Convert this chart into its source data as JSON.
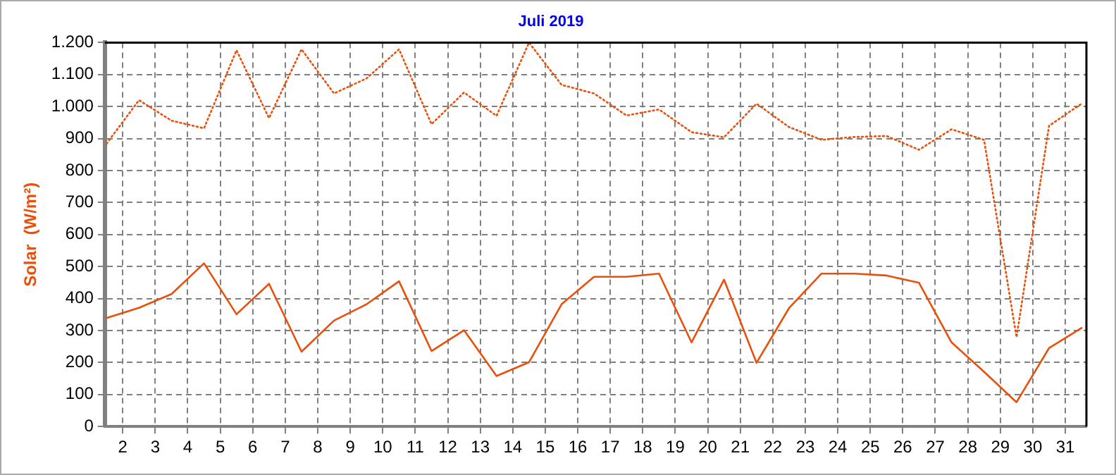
{
  "chart_data": {
    "type": "line",
    "title": "Juli 2019",
    "ylabel": "Solar  (W/m²)",
    "x": [
      1.5,
      2.5,
      3.5,
      4.5,
      5.5,
      6.5,
      7.5,
      8.5,
      9.5,
      10.5,
      11.5,
      12.5,
      13.5,
      14.5,
      15.5,
      16.5,
      17.5,
      18.5,
      19.5,
      20.5,
      21.5,
      22.5,
      23.5,
      24.5,
      25.5,
      26.5,
      27.5,
      28.5,
      29.5,
      30.5,
      31.5
    ],
    "series": [
      {
        "color": "#e8500c",
        "line_style": "dotted",
        "values": [
          884,
          1020,
          956,
          932,
          1176,
          964,
          1179,
          1041,
          1088,
          1179,
          945,
          1044,
          971,
          1200,
          1068,
          1041,
          972,
          991,
          920,
          904,
          1009,
          936,
          896,
          905,
          908,
          865,
          929,
          896,
          279,
          940,
          1009
        ]
      },
      {
        "color": "#e8500c",
        "line_style": "solid",
        "values": [
          339,
          371,
          414,
          510,
          351,
          446,
          234,
          331,
          382,
          454,
          236,
          301,
          158,
          201,
          382,
          468,
          468,
          478,
          263,
          459,
          199,
          370,
          478,
          478,
          472,
          449,
          263,
          171,
          76,
          245,
          308
        ]
      }
    ],
    "xlim": [
      1.45,
      31.65
    ],
    "xticks": [
      2,
      3,
      4,
      5,
      6,
      7,
      8,
      9,
      10,
      11,
      12,
      13,
      14,
      15,
      16,
      17,
      18,
      19,
      20,
      21,
      22,
      23,
      24,
      25,
      26,
      27,
      28,
      29,
      30,
      31
    ],
    "ylim": [
      0,
      1200
    ],
    "yticks": [
      0,
      100,
      200,
      300,
      400,
      500,
      600,
      700,
      800,
      900,
      {
        "value": 1000,
        "label": "1.000"
      },
      {
        "value": 1100,
        "label": "1.100"
      },
      {
        "value": 1200,
        "label": "1.200"
      }
    ],
    "grid": true,
    "legend": false,
    "marker": "none"
  }
}
